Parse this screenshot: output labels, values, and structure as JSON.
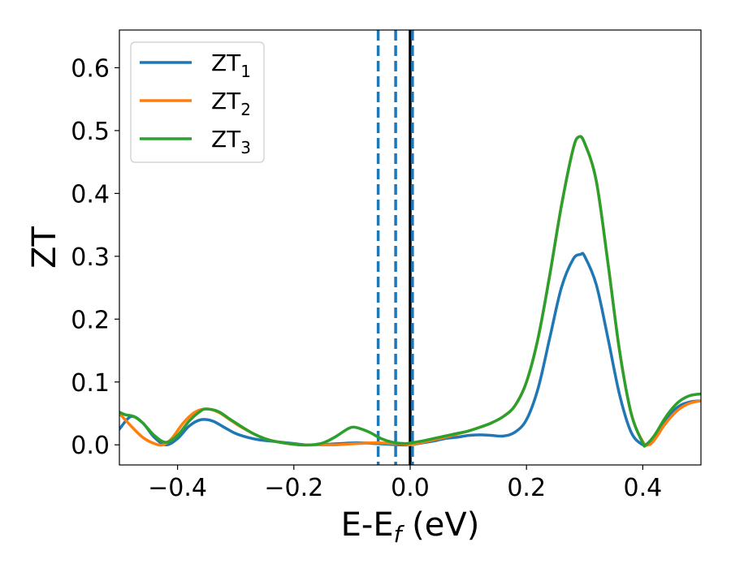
{
  "chart_data": {
    "type": "line",
    "xlabel": {
      "main": "E-E",
      "sub": "f",
      "tail": " (eV)"
    },
    "ylabel": "ZT",
    "xlim": [
      -0.5,
      0.5
    ],
    "ylim": [
      -0.032,
      0.66
    ],
    "xticks": [
      -0.4,
      -0.2,
      0.0,
      0.2,
      0.4
    ],
    "xtick_labels": [
      "−0.4",
      "−0.2",
      "0.0",
      "0.2",
      "0.4"
    ],
    "yticks": [
      0.0,
      0.1,
      0.2,
      0.3,
      0.4,
      0.5,
      0.6
    ],
    "ytick_labels": [
      "0.0",
      "0.1",
      "0.2",
      "0.3",
      "0.4",
      "0.5",
      "0.6"
    ],
    "grid": false,
    "legend_position": "top-left",
    "vlines": [
      {
        "x": -0.055,
        "style": "dashed",
        "color": "#1f77b4"
      },
      {
        "x": -0.025,
        "style": "dashed",
        "color": "#1f77b4"
      },
      {
        "x": 0.0,
        "style": "solid",
        "color": "#000000"
      },
      {
        "x": 0.004,
        "style": "dashed",
        "color": "#1f77b4"
      }
    ],
    "series": [
      {
        "name": "ZT",
        "subscript": "1",
        "color": "#1f77b4",
        "points": [
          [
            -0.5,
            0.025
          ],
          [
            -0.48,
            0.045
          ],
          [
            -0.46,
            0.035
          ],
          [
            -0.44,
            0.012
          ],
          [
            -0.42,
            0.0
          ],
          [
            -0.4,
            0.01
          ],
          [
            -0.38,
            0.03
          ],
          [
            -0.36,
            0.04
          ],
          [
            -0.34,
            0.038
          ],
          [
            -0.32,
            0.028
          ],
          [
            -0.3,
            0.018
          ],
          [
            -0.28,
            0.012
          ],
          [
            -0.26,
            0.008
          ],
          [
            -0.24,
            0.006
          ],
          [
            -0.22,
            0.004
          ],
          [
            -0.2,
            0.002
          ],
          [
            -0.18,
            0.0
          ],
          [
            -0.16,
            0.0
          ],
          [
            -0.14,
            0.001
          ],
          [
            -0.12,
            0.002
          ],
          [
            -0.1,
            0.003
          ],
          [
            -0.08,
            0.003
          ],
          [
            -0.06,
            0.002
          ],
          [
            -0.04,
            0.001
          ],
          [
            -0.02,
            0.0
          ],
          [
            0.0,
            0.0
          ],
          [
            0.02,
            0.003
          ],
          [
            0.04,
            0.006
          ],
          [
            0.06,
            0.01
          ],
          [
            0.08,
            0.012
          ],
          [
            0.1,
            0.015
          ],
          [
            0.12,
            0.016
          ],
          [
            0.14,
            0.015
          ],
          [
            0.16,
            0.014
          ],
          [
            0.18,
            0.02
          ],
          [
            0.2,
            0.04
          ],
          [
            0.22,
            0.09
          ],
          [
            0.24,
            0.17
          ],
          [
            0.26,
            0.25
          ],
          [
            0.28,
            0.295
          ],
          [
            0.293,
            0.303
          ],
          [
            0.3,
            0.3
          ],
          [
            0.32,
            0.255
          ],
          [
            0.34,
            0.17
          ],
          [
            0.36,
            0.08
          ],
          [
            0.38,
            0.02
          ],
          [
            0.4,
            0.0
          ],
          [
            0.41,
            0.002
          ],
          [
            0.42,
            0.012
          ],
          [
            0.44,
            0.04
          ],
          [
            0.46,
            0.06
          ],
          [
            0.48,
            0.068
          ],
          [
            0.5,
            0.07
          ]
        ]
      },
      {
        "name": "ZT",
        "subscript": "2",
        "color": "#ff7f0e",
        "points": [
          [
            -0.5,
            0.05
          ],
          [
            -0.48,
            0.03
          ],
          [
            -0.46,
            0.012
          ],
          [
            -0.44,
            0.002
          ],
          [
            -0.425,
            0.0
          ],
          [
            -0.41,
            0.01
          ],
          [
            -0.39,
            0.035
          ],
          [
            -0.37,
            0.052
          ],
          [
            -0.35,
            0.057
          ],
          [
            -0.33,
            0.052
          ],
          [
            -0.31,
            0.04
          ],
          [
            -0.29,
            0.028
          ],
          [
            -0.27,
            0.018
          ],
          [
            -0.25,
            0.01
          ],
          [
            -0.23,
            0.005
          ],
          [
            -0.21,
            0.002
          ],
          [
            -0.19,
            0.0
          ],
          [
            -0.17,
            0.0
          ],
          [
            -0.15,
            0.0
          ],
          [
            -0.13,
            0.0
          ],
          [
            -0.11,
            0.001
          ],
          [
            -0.09,
            0.002
          ],
          [
            -0.07,
            0.003
          ],
          [
            -0.05,
            0.003
          ],
          [
            -0.03,
            0.002
          ],
          [
            -0.01,
            0.001
          ],
          [
            0.0,
            0.0
          ],
          [
            0.02,
            0.004
          ],
          [
            0.04,
            0.008
          ],
          [
            0.06,
            0.012
          ],
          [
            0.08,
            0.017
          ],
          [
            0.1,
            0.022
          ],
          [
            0.12,
            0.028
          ],
          [
            0.14,
            0.035
          ],
          [
            0.16,
            0.045
          ],
          [
            0.18,
            0.062
          ],
          [
            0.2,
            0.1
          ],
          [
            0.22,
            0.17
          ],
          [
            0.24,
            0.27
          ],
          [
            0.26,
            0.38
          ],
          [
            0.28,
            0.47
          ],
          [
            0.29,
            0.49
          ],
          [
            0.3,
            0.48
          ],
          [
            0.32,
            0.42
          ],
          [
            0.34,
            0.29
          ],
          [
            0.36,
            0.15
          ],
          [
            0.38,
            0.05
          ],
          [
            0.4,
            0.005
          ],
          [
            0.41,
            0.0
          ],
          [
            0.42,
            0.008
          ],
          [
            0.44,
            0.035
          ],
          [
            0.46,
            0.055
          ],
          [
            0.48,
            0.066
          ],
          [
            0.5,
            0.07
          ]
        ]
      },
      {
        "name": "ZT",
        "subscript": "3",
        "color": "#2ca02c",
        "points": [
          [
            -0.5,
            0.052
          ],
          [
            -0.49,
            0.048
          ],
          [
            -0.475,
            0.045
          ],
          [
            -0.46,
            0.035
          ],
          [
            -0.44,
            0.015
          ],
          [
            -0.42,
            0.004
          ],
          [
            -0.4,
            0.015
          ],
          [
            -0.38,
            0.038
          ],
          [
            -0.36,
            0.054
          ],
          [
            -0.35,
            0.057
          ],
          [
            -0.33,
            0.053
          ],
          [
            -0.31,
            0.041
          ],
          [
            -0.29,
            0.029
          ],
          [
            -0.27,
            0.018
          ],
          [
            -0.25,
            0.01
          ],
          [
            -0.23,
            0.005
          ],
          [
            -0.21,
            0.002
          ],
          [
            -0.19,
            0.0
          ],
          [
            -0.17,
            0.0
          ],
          [
            -0.15,
            0.003
          ],
          [
            -0.13,
            0.012
          ],
          [
            -0.11,
            0.024
          ],
          [
            -0.1,
            0.028
          ],
          [
            -0.09,
            0.027
          ],
          [
            -0.07,
            0.02
          ],
          [
            -0.05,
            0.01
          ],
          [
            -0.03,
            0.004
          ],
          [
            -0.01,
            0.002
          ],
          [
            0.0,
            0.003
          ],
          [
            0.02,
            0.006
          ],
          [
            0.04,
            0.01
          ],
          [
            0.06,
            0.014
          ],
          [
            0.08,
            0.018
          ],
          [
            0.1,
            0.022
          ],
          [
            0.12,
            0.028
          ],
          [
            0.14,
            0.035
          ],
          [
            0.16,
            0.045
          ],
          [
            0.18,
            0.062
          ],
          [
            0.2,
            0.1
          ],
          [
            0.22,
            0.17
          ],
          [
            0.24,
            0.27
          ],
          [
            0.26,
            0.38
          ],
          [
            0.28,
            0.47
          ],
          [
            0.29,
            0.49
          ],
          [
            0.3,
            0.48
          ],
          [
            0.32,
            0.42
          ],
          [
            0.34,
            0.29
          ],
          [
            0.36,
            0.15
          ],
          [
            0.38,
            0.05
          ],
          [
            0.4,
            0.003
          ],
          [
            0.405,
            0.0
          ],
          [
            0.42,
            0.015
          ],
          [
            0.44,
            0.045
          ],
          [
            0.46,
            0.067
          ],
          [
            0.48,
            0.078
          ],
          [
            0.5,
            0.081
          ]
        ]
      }
    ]
  }
}
